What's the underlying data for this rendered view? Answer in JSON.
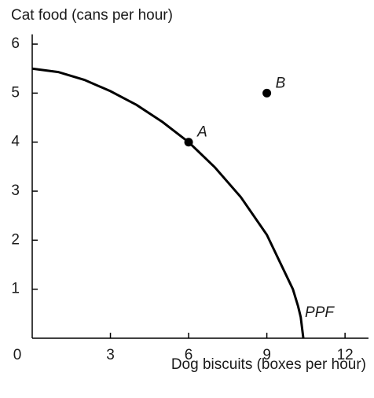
{
  "chart_data": {
    "type": "line",
    "ylabel": "Cat food (cans per hour)",
    "xlabel": "Dog biscuits (boxes per hour)",
    "origin_label": "0",
    "xlim": [
      0,
      12.9
    ],
    "ylim": [
      0,
      6.2
    ],
    "xticks": [
      3,
      6,
      9,
      12
    ],
    "yticks": [
      1,
      2,
      3,
      4,
      5,
      6
    ],
    "series": [
      {
        "name": "PPF",
        "color": "#000000",
        "x": [
          0,
          1,
          2,
          3,
          4,
          5,
          6,
          7,
          8,
          9,
          10,
          10.2,
          10.3,
          10.4
        ],
        "values": [
          5.5,
          5.43,
          5.27,
          5.04,
          4.76,
          4.41,
          4.0,
          3.49,
          2.88,
          2.11,
          1.0,
          0.65,
          0.43,
          0
        ]
      }
    ],
    "points": [
      {
        "label": "A",
        "x": 6,
        "y": 4
      },
      {
        "label": "B",
        "x": 9,
        "y": 5
      }
    ]
  }
}
